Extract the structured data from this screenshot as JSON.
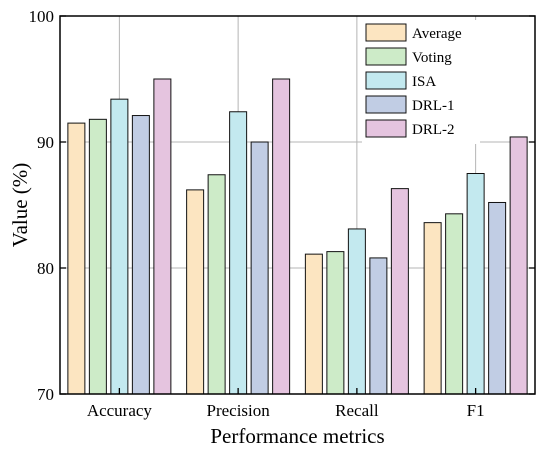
{
  "chart_data": {
    "type": "bar",
    "title": "",
    "xlabel": "Performance metrics",
    "ylabel": "Value (%)",
    "ylim": [
      70,
      100
    ],
    "yticks": [
      70,
      80,
      90,
      100
    ],
    "grid": true,
    "legend_position": "top-right",
    "categories": [
      "Accuracy",
      "Precision",
      "Recall",
      "F1"
    ],
    "series": [
      {
        "name": "Average",
        "color": "#FCE5C1",
        "values": [
          91.5,
          86.2,
          81.1,
          83.6
        ]
      },
      {
        "name": "Voting",
        "color": "#CDEBC8",
        "values": [
          91.8,
          87.4,
          81.3,
          84.3
        ]
      },
      {
        "name": "ISA",
        "color": "#C3E9EF",
        "values": [
          93.4,
          92.4,
          83.1,
          87.5
        ]
      },
      {
        "name": "DRL-1",
        "color": "#C1CDE4",
        "values": [
          92.1,
          90.0,
          80.8,
          85.2
        ]
      },
      {
        "name": "DRL-2",
        "color": "#E5C4DF",
        "values": [
          95.0,
          95.0,
          86.3,
          90.4
        ]
      }
    ]
  }
}
